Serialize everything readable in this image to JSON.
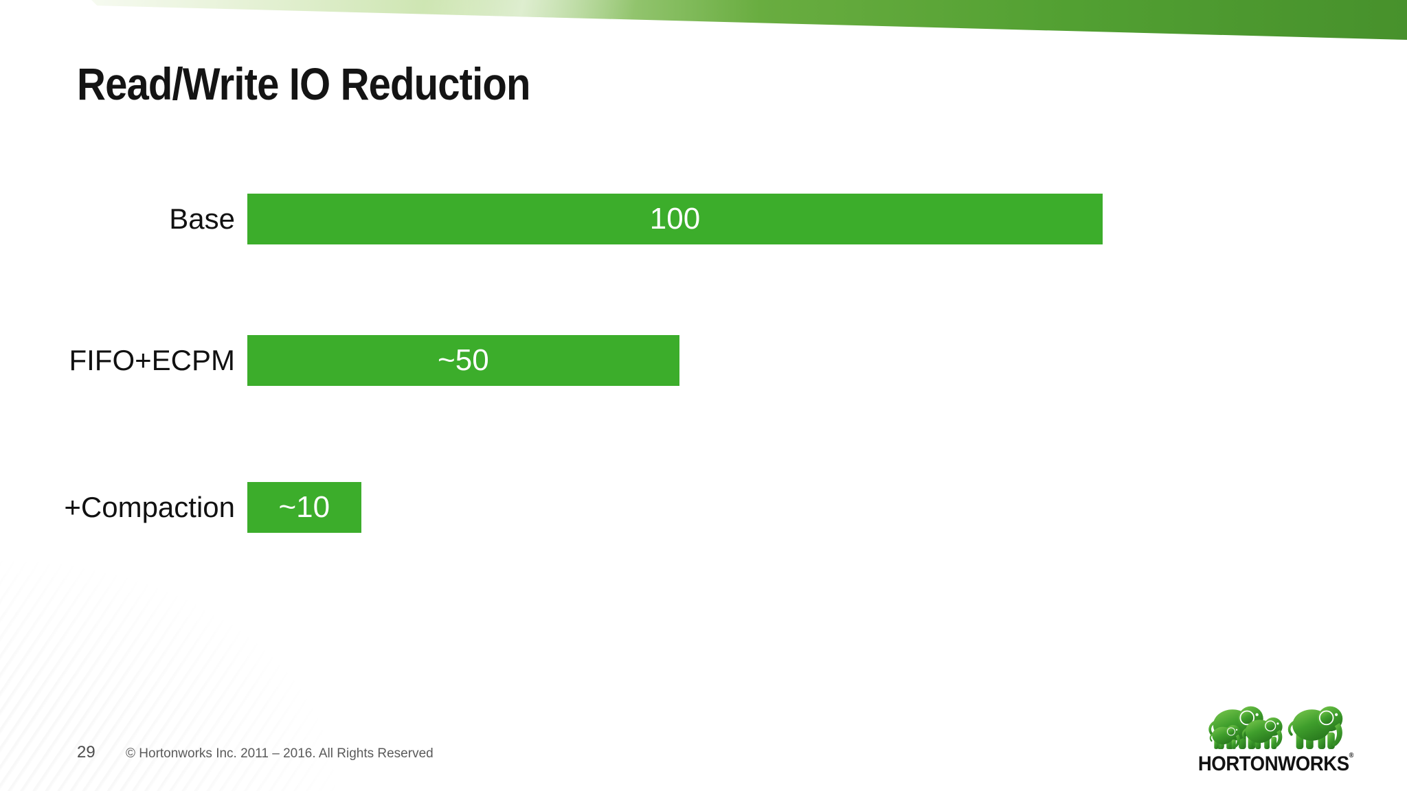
{
  "slide": {
    "title": "Read/Write IO Reduction",
    "page_number": "29",
    "copyright": "© Hortonworks Inc. 2011 – 2016. All Rights Reserved"
  },
  "chart_data": {
    "type": "bar",
    "orientation": "horizontal",
    "title": "",
    "xlabel": "",
    "ylabel": "",
    "categories": [
      "Base",
      "FIFO+ECPM",
      "+Compaction"
    ],
    "values": [
      100,
      50,
      10
    ],
    "value_labels": [
      "100",
      "~50",
      "~10"
    ],
    "xlim": [
      0,
      100
    ],
    "bar_widths_pct": [
      100,
      50.5,
      13.3
    ],
    "bar_color": "#3cad2b",
    "value_label_color": "#ffffff",
    "category_label_color": "#111111",
    "grid": false,
    "legend": false
  },
  "logo": {
    "brand": "HORTONWORKS",
    "registered_mark": "®",
    "elephant_icons": [
      "elephant-small-icon",
      "elephant-medium-icon",
      "elephant-large-icon"
    ]
  },
  "colors": {
    "bar_green": "#3cad2b",
    "ribbon_green_light": "#c9e3ab",
    "ribbon_green_dark": "#47912c",
    "background": "#ffffff",
    "title_text": "#141414",
    "footer_text": "#5a5a5a"
  }
}
